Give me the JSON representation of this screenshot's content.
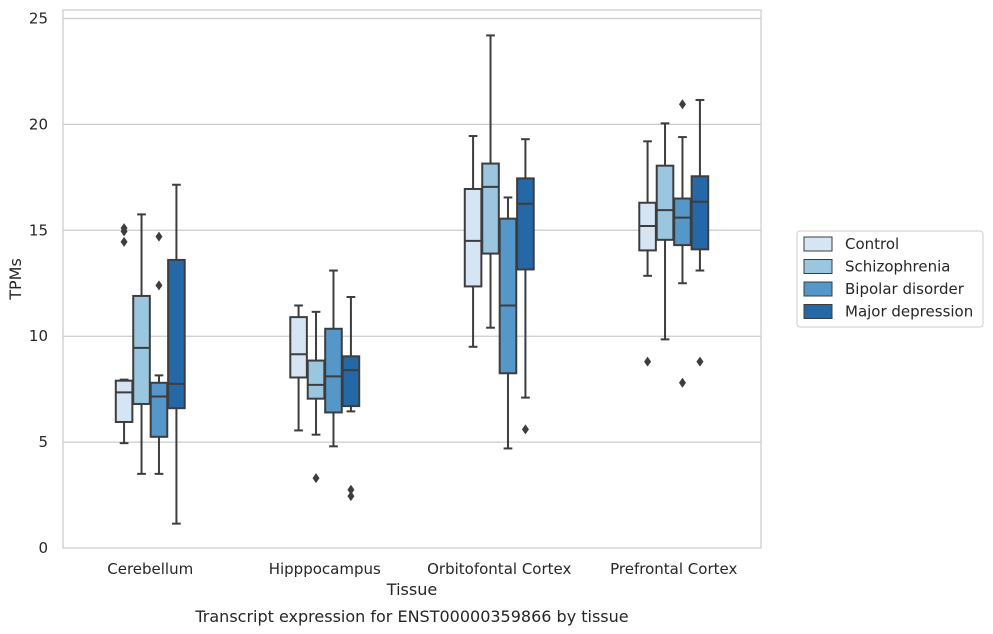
{
  "caption": "Transcript expression for ENST00000359866 by tissue",
  "chart_data": {
    "type": "box",
    "xlabel": "Tissue",
    "ylabel": "TPMs",
    "ylim": [
      0,
      25.4
    ],
    "yticks": [
      0,
      5,
      10,
      15,
      20,
      25
    ],
    "grid": "horizontal",
    "legend_position": "right",
    "categories": [
      "Cerebellum",
      "Hipppocampus",
      "Orbitofontal Cortex",
      "Prefrontal Cortex"
    ],
    "series": [
      {
        "name": "Control",
        "color": "#d6e5f4",
        "boxes": [
          {
            "whislo": 4.95,
            "q1": 5.95,
            "med": 7.35,
            "q3": 7.9,
            "whishi": 7.95,
            "fliers": [
              14.45,
              14.95,
              15.1
            ]
          },
          {
            "whislo": 5.55,
            "q1": 8.05,
            "med": 9.15,
            "q3": 10.9,
            "whishi": 11.45,
            "fliers": []
          },
          {
            "whislo": 9.5,
            "q1": 12.35,
            "med": 14.5,
            "q3": 16.95,
            "whishi": 19.45,
            "fliers": []
          },
          {
            "whislo": 12.85,
            "q1": 14.05,
            "med": 15.2,
            "q3": 16.3,
            "whishi": 19.2,
            "fliers": [
              8.8
            ]
          }
        ]
      },
      {
        "name": "Schizophrenia",
        "color": "#9ac6df",
        "boxes": [
          {
            "whislo": 3.5,
            "q1": 6.8,
            "med": 9.45,
            "q3": 11.9,
            "whishi": 15.75,
            "fliers": []
          },
          {
            "whislo": 5.35,
            "q1": 7.05,
            "med": 7.7,
            "q3": 8.85,
            "whishi": 11.15,
            "fliers": [
              3.3
            ]
          },
          {
            "whislo": 10.4,
            "q1": 13.9,
            "med": 17.05,
            "q3": 18.15,
            "whishi": 24.2,
            "fliers": []
          },
          {
            "whislo": 9.85,
            "q1": 14.55,
            "med": 15.95,
            "q3": 18.05,
            "whishi": 20.05,
            "fliers": []
          }
        ]
      },
      {
        "name": "Bipolar disorder",
        "color": "#5497c8",
        "boxes": [
          {
            "whislo": 3.5,
            "q1": 5.25,
            "med": 7.15,
            "q3": 7.8,
            "whishi": 8.15,
            "fliers": [
              12.4,
              14.7
            ]
          },
          {
            "whislo": 4.8,
            "q1": 6.4,
            "med": 8.1,
            "q3": 10.35,
            "whishi": 13.1,
            "fliers": []
          },
          {
            "whislo": 4.7,
            "q1": 8.25,
            "med": 11.45,
            "q3": 15.55,
            "whishi": 16.55,
            "fliers": []
          },
          {
            "whislo": 12.5,
            "q1": 14.3,
            "med": 15.6,
            "q3": 16.5,
            "whishi": 19.4,
            "fliers": [
              7.8,
              20.95
            ]
          }
        ]
      },
      {
        "name": "Major depression",
        "color": "#2568a8",
        "boxes": [
          {
            "whislo": 1.15,
            "q1": 6.6,
            "med": 7.75,
            "q3": 13.6,
            "whishi": 17.15,
            "fliers": []
          },
          {
            "whislo": 6.45,
            "q1": 6.7,
            "med": 8.4,
            "q3": 9.05,
            "whishi": 11.85,
            "fliers": [
              2.45,
              2.75
            ]
          },
          {
            "whislo": 7.1,
            "q1": 13.15,
            "med": 16.25,
            "q3": 17.45,
            "whishi": 19.3,
            "fliers": [
              5.6
            ]
          },
          {
            "whislo": 13.1,
            "q1": 14.1,
            "med": 16.35,
            "q3": 17.55,
            "whishi": 21.15,
            "fliers": [
              8.8
            ]
          }
        ]
      }
    ]
  }
}
